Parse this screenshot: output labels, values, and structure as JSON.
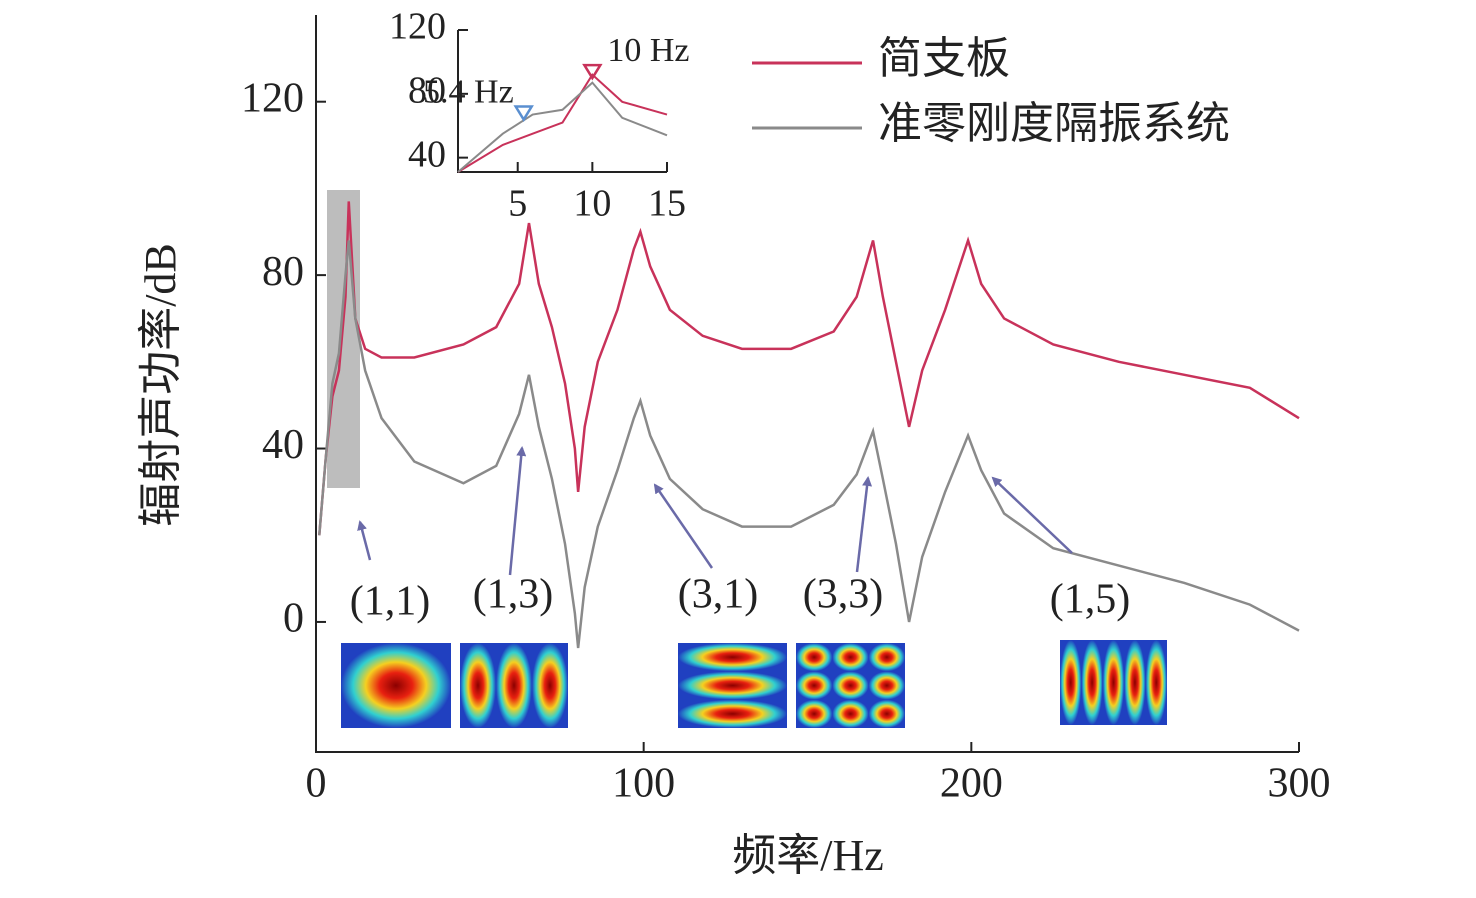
{
  "chart_data": [
    {
      "type": "line",
      "x_label": "频率/Hz",
      "y_label": "辐射声功率/dB",
      "x": [
        1,
        3,
        5,
        7,
        9,
        10,
        12,
        15,
        20,
        30,
        45,
        55,
        62,
        65,
        68,
        72,
        76,
        79,
        80,
        82,
        86,
        92,
        97,
        99,
        102,
        108,
        118,
        130,
        145,
        158,
        165,
        170,
        173,
        177,
        181,
        185,
        192,
        199,
        203,
        210,
        225,
        245,
        265,
        285,
        300
      ],
      "series": [
        {
          "name": "简支板",
          "color": "#c8325a",
          "values": [
            20,
            38,
            52,
            58,
            75,
            97,
            70,
            63,
            61,
            61,
            64,
            68,
            78,
            92,
            78,
            68,
            55,
            40,
            30,
            45,
            60,
            72,
            86,
            90,
            82,
            72,
            66,
            63,
            63,
            67,
            75,
            88,
            75,
            60,
            45,
            58,
            72,
            88,
            78,
            70,
            64,
            60,
            57,
            54,
            47
          ]
        },
        {
          "name": "准零刚度隔振系统",
          "color": "#8a8a8a",
          "values": [
            20,
            38,
            55,
            62,
            80,
            88,
            70,
            58,
            47,
            37,
            32,
            36,
            48,
            57,
            45,
            33,
            18,
            2,
            -6,
            8,
            22,
            35,
            47,
            51,
            43,
            33,
            26,
            22,
            22,
            27,
            34,
            44,
            33,
            18,
            0,
            15,
            30,
            43,
            35,
            25,
            17,
            13,
            9,
            4,
            -2
          ]
        }
      ],
      "xlim": [
        0,
        300
      ],
      "ylim": [
        -30,
        140
      ],
      "xticks": [
        0,
        100,
        200,
        300
      ],
      "yticks": [
        0,
        40,
        80,
        120
      ],
      "annotations": [
        "(1,1)",
        "(1,3)",
        "(3,1)",
        "(3,3)",
        "(1,5)"
      ]
    },
    {
      "type": "line",
      "x": [
        1,
        4,
        6,
        8,
        10,
        12,
        15
      ],
      "series": [
        {
          "color": "#c8325a",
          "values": [
            31,
            48,
            55,
            62,
            92,
            75,
            67
          ]
        },
        {
          "color": "#8a8a8a",
          "values": [
            31,
            55,
            67,
            70,
            87,
            65,
            54
          ]
        }
      ],
      "xlim": [
        1,
        15
      ],
      "ylim": [
        31,
        120
      ],
      "xticks": [
        5,
        10,
        15
      ],
      "yticks": [
        40,
        80,
        120
      ],
      "markers": [
        {
          "x": 5.4,
          "y": 67,
          "label": "5.4 Hz",
          "color": "#5a8fd0"
        },
        {
          "x": 10,
          "y": 93,
          "label": "10 Hz",
          "color": "#c8325a"
        }
      ]
    }
  ]
}
